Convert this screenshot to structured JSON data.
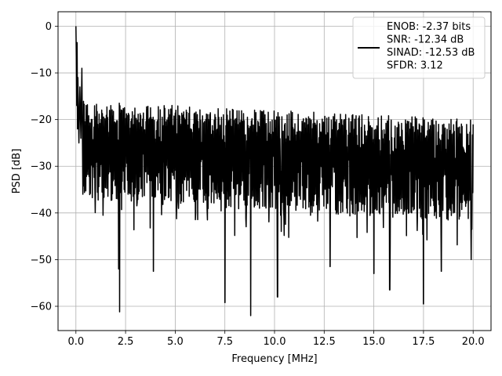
{
  "chart_data": {
    "type": "line",
    "xlabel": "Frequency [MHz]",
    "ylabel": "PSD [dB]",
    "xlim": [
      -0.9,
      20.9
    ],
    "ylim": [
      -65.2,
      3.1
    ],
    "x_ticks": [
      0.0,
      2.5,
      5.0,
      7.5,
      10.0,
      12.5,
      15.0,
      17.5,
      20.0
    ],
    "x_tick_labels": [
      "0.0",
      "2.5",
      "5.0",
      "7.5",
      "10.0",
      "12.5",
      "15.0",
      "17.5",
      "20.0"
    ],
    "y_ticks": [
      0,
      -10,
      -20,
      -30,
      -40,
      -50,
      -60
    ],
    "y_tick_labels": [
      "0",
      "−10",
      "−20",
      "−30",
      "−40",
      "−50",
      "−60"
    ],
    "grid": true,
    "line_color": "#000000",
    "legend": {
      "placement": "top-right",
      "lines": [
        "ENOB: -2.37 bits",
        "SNR: -12.34 dB",
        "SINAD: -12.53 dB",
        "SFDR: 3.12"
      ]
    },
    "series": [
      {
        "x_start": 0.0,
        "x_end": 20.0,
        "points": 1200,
        "peak": {
          "x": 0.0,
          "y": 0.0
        },
        "early_values": [
          {
            "x": 0.02,
            "y": -6.5
          },
          {
            "x": 0.04,
            "y": -17.0
          },
          {
            "x": 0.06,
            "y": -3.5
          },
          {
            "x": 0.08,
            "y": -22.0
          },
          {
            "x": 0.1,
            "y": -11.0
          },
          {
            "x": 0.15,
            "y": -25.0
          },
          {
            "x": 0.2,
            "y": -13.0
          },
          {
            "x": 0.25,
            "y": -24.0
          },
          {
            "x": 0.3,
            "y": -9.0
          },
          {
            "x": 0.35,
            "y": -36.0
          }
        ],
        "upper_envelope_start": -16.0,
        "upper_envelope_end": -20.0,
        "mean_start": -25.0,
        "mean_end": -30.0,
        "lower_envelope_start": -37.0,
        "lower_envelope_end": -42.0,
        "notable_dips": [
          {
            "x": 2.15,
            "y": -52.0
          },
          {
            "x": 2.2,
            "y": -61.2
          },
          {
            "x": 3.9,
            "y": -52.5
          },
          {
            "x": 7.5,
            "y": -59.2
          },
          {
            "x": 8.8,
            "y": -62.0
          },
          {
            "x": 10.15,
            "y": -58.0
          },
          {
            "x": 12.8,
            "y": -51.5
          },
          {
            "x": 15.0,
            "y": -53.0
          },
          {
            "x": 15.8,
            "y": -56.5
          },
          {
            "x": 17.5,
            "y": -59.5
          },
          {
            "x": 18.4,
            "y": -52.5
          },
          {
            "x": 19.9,
            "y": -50.0
          }
        ]
      }
    ]
  }
}
